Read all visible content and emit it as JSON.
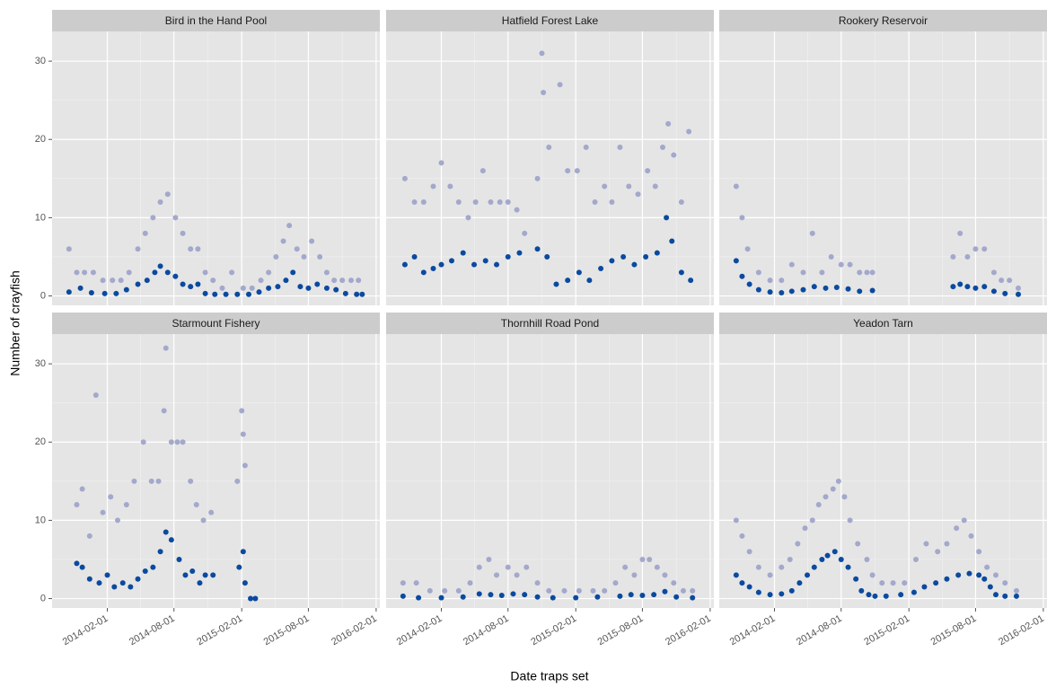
{
  "axis_labels": {
    "x": "Date traps set",
    "y": "Number of crayfish"
  },
  "chart_data": [
    {
      "type": "scatter",
      "title": "Bird in the Hand Pool",
      "grid": true,
      "xlim": [
        "2013-09-04",
        "2016-02-11"
      ],
      "ylim": [
        -1.2,
        33.8
      ],
      "xticks": [
        "2014-02-01",
        "2014-08-01",
        "2015-02-01",
        "2015-08-01",
        "2016-02-01"
      ],
      "yticks": [
        0,
        10,
        20,
        30
      ],
      "series": [
        {
          "color": "#a3a8cc",
          "x": [
            "2013-10-20",
            "2013-11-10",
            "2013-12-01",
            "2013-12-25",
            "2014-01-20",
            "2014-02-15",
            "2014-03-10",
            "2014-04-01",
            "2014-04-25",
            "2014-05-15",
            "2014-06-05",
            "2014-06-25",
            "2014-07-15",
            "2014-08-05",
            "2014-08-25",
            "2014-09-15",
            "2014-10-05",
            "2014-10-25",
            "2014-11-15",
            "2014-12-10",
            "2015-01-05",
            "2015-02-05",
            "2015-03-01",
            "2015-03-25",
            "2015-04-15",
            "2015-05-05",
            "2015-05-25",
            "2015-06-10",
            "2015-07-01",
            "2015-07-20",
            "2015-08-10",
            "2015-09-01",
            "2015-09-20",
            "2015-10-10",
            "2015-11-01",
            "2015-11-25",
            "2015-12-15"
          ],
          "values": [
            6,
            3,
            3,
            3,
            2,
            2,
            2,
            3,
            6,
            8,
            10,
            12,
            13,
            10,
            8,
            6,
            6,
            3,
            2,
            1,
            3,
            1,
            1,
            2,
            3,
            5,
            7,
            9,
            6,
            5,
            7,
            5,
            3,
            2,
            2,
            2,
            2
          ]
        },
        {
          "color": "#0a4a9f",
          "x": [
            "2013-10-20",
            "2013-11-20",
            "2013-12-20",
            "2014-01-25",
            "2014-02-25",
            "2014-03-25",
            "2014-04-25",
            "2014-05-20",
            "2014-06-10",
            "2014-06-25",
            "2014-07-15",
            "2014-08-05",
            "2014-08-25",
            "2014-09-15",
            "2014-10-05",
            "2014-10-25",
            "2014-11-20",
            "2014-12-20",
            "2015-01-20",
            "2015-02-20",
            "2015-03-20",
            "2015-04-15",
            "2015-05-10",
            "2015-06-01",
            "2015-06-20",
            "2015-07-10",
            "2015-08-01",
            "2015-08-25",
            "2015-09-20",
            "2015-10-15",
            "2015-11-10",
            "2015-12-10",
            "2015-12-25"
          ],
          "values": [
            0.5,
            1,
            0.4,
            0.3,
            0.3,
            0.8,
            1.5,
            2,
            3,
            3.8,
            3,
            2.5,
            1.5,
            1.2,
            1.5,
            0.3,
            0.2,
            0.2,
            0.2,
            0.2,
            0.5,
            1,
            1.2,
            2,
            3,
            1.2,
            1,
            1.5,
            1,
            0.8,
            0.3,
            0.2,
            0.2
          ]
        }
      ]
    },
    {
      "type": "scatter",
      "title": "Hatfield Forest Lake",
      "grid": true,
      "xlim": [
        "2013-09-04",
        "2016-02-11"
      ],
      "ylim": [
        -1.2,
        33.8
      ],
      "xticks": [
        "2014-02-01",
        "2014-08-01",
        "2015-02-01",
        "2015-08-01",
        "2016-02-01"
      ],
      "yticks": [
        0,
        10,
        20,
        30
      ],
      "series": [
        {
          "color": "#a3a8cc",
          "x": [
            "2013-10-25",
            "2013-11-20",
            "2013-12-15",
            "2014-01-10",
            "2014-02-01",
            "2014-02-25",
            "2014-03-20",
            "2014-04-15",
            "2014-05-05",
            "2014-05-25",
            "2014-06-15",
            "2014-07-10",
            "2014-08-01",
            "2014-08-25",
            "2014-09-15",
            "2014-10-20",
            "2014-11-01",
            "2014-11-05",
            "2014-11-20",
            "2014-12-20",
            "2015-01-10",
            "2015-02-05",
            "2015-03-01",
            "2015-03-25",
            "2015-04-20",
            "2015-05-10",
            "2015-06-01",
            "2015-06-25",
            "2015-07-20",
            "2015-08-15",
            "2015-09-05",
            "2015-09-25",
            "2015-10-10",
            "2015-10-25",
            "2015-11-15",
            "2015-12-05"
          ],
          "values": [
            15,
            12,
            12,
            14,
            17,
            14,
            12,
            10,
            12,
            16,
            12,
            12,
            12,
            11,
            8,
            15,
            31,
            26,
            19,
            27,
            16,
            16,
            19,
            12,
            14,
            12,
            19,
            14,
            13,
            16,
            14,
            19,
            22,
            18,
            12,
            21
          ]
        },
        {
          "color": "#0a4a9f",
          "x": [
            "2013-10-25",
            "2013-11-20",
            "2013-12-15",
            "2014-01-10",
            "2014-02-01",
            "2014-03-01",
            "2014-04-01",
            "2014-05-01",
            "2014-06-01",
            "2014-07-01",
            "2014-08-01",
            "2014-09-01",
            "2014-10-20",
            "2014-11-15",
            "2014-12-10",
            "2015-01-10",
            "2015-02-10",
            "2015-03-10",
            "2015-04-10",
            "2015-05-10",
            "2015-06-10",
            "2015-07-10",
            "2015-08-10",
            "2015-09-10",
            "2015-10-05",
            "2015-10-20",
            "2015-11-15",
            "2015-12-10"
          ],
          "values": [
            4,
            5,
            3,
            3.5,
            4,
            4.5,
            5.5,
            4,
            4.5,
            4,
            5,
            5.5,
            6,
            5,
            1.5,
            2,
            3,
            2,
            3.5,
            4.5,
            5,
            4,
            5,
            5.5,
            10,
            7,
            3,
            2
          ]
        }
      ]
    },
    {
      "type": "scatter",
      "title": "Rookery Reservoir",
      "grid": true,
      "xlim": [
        "2013-09-04",
        "2016-02-11"
      ],
      "ylim": [
        -1.2,
        33.8
      ],
      "xticks": [
        "2014-02-01",
        "2014-08-01",
        "2015-02-01",
        "2015-08-01",
        "2016-02-01"
      ],
      "yticks": [
        0,
        10,
        20,
        30
      ],
      "series": [
        {
          "color": "#a3a8cc",
          "x": [
            "2013-10-20",
            "2013-11-05",
            "2013-11-20",
            "2013-12-20",
            "2014-01-20",
            "2014-02-20",
            "2014-03-20",
            "2014-04-20",
            "2014-05-15",
            "2014-06-10",
            "2014-07-05",
            "2014-08-01",
            "2014-08-25",
            "2014-09-20",
            "2014-10-10",
            "2014-10-25",
            "2015-06-01",
            "2015-06-20",
            "2015-07-10",
            "2015-08-01",
            "2015-08-25",
            "2015-09-20",
            "2015-10-10",
            "2015-11-01",
            "2015-11-25"
          ],
          "values": [
            14,
            10,
            6,
            3,
            2,
            2,
            4,
            3,
            8,
            3,
            5,
            4,
            4,
            3,
            3,
            3,
            5,
            8,
            5,
            6,
            6,
            3,
            2,
            2,
            1
          ]
        },
        {
          "color": "#0a4a9f",
          "x": [
            "2013-10-20",
            "2013-11-05",
            "2013-11-25",
            "2013-12-20",
            "2014-01-20",
            "2014-02-20",
            "2014-03-20",
            "2014-04-20",
            "2014-05-20",
            "2014-06-20",
            "2014-07-20",
            "2014-08-20",
            "2014-09-20",
            "2014-10-25",
            "2015-06-01",
            "2015-06-20",
            "2015-07-10",
            "2015-08-01",
            "2015-08-25",
            "2015-09-20",
            "2015-10-20",
            "2015-11-25"
          ],
          "values": [
            4.5,
            2.5,
            1.5,
            0.8,
            0.5,
            0.4,
            0.6,
            0.8,
            1.2,
            1,
            1.1,
            0.9,
            0.6,
            0.7,
            1.2,
            1.5,
            1.2,
            1,
            1.2,
            0.6,
            0.3,
            0.2
          ]
        }
      ]
    },
    {
      "type": "scatter",
      "title": "Starmount Fishery",
      "grid": true,
      "xlim": [
        "2013-09-04",
        "2016-02-11"
      ],
      "ylim": [
        -1.2,
        33.8
      ],
      "xticks": [
        "2014-02-01",
        "2014-08-01",
        "2015-02-01",
        "2015-08-01",
        "2016-02-01"
      ],
      "yticks": [
        0,
        10,
        20,
        30
      ],
      "series": [
        {
          "color": "#a3a8cc",
          "x": [
            "2013-11-10",
            "2013-11-25",
            "2013-12-15",
            "2014-01-01",
            "2014-01-20",
            "2014-02-10",
            "2014-03-01",
            "2014-03-25",
            "2014-04-15",
            "2014-05-10",
            "2014-06-01",
            "2014-06-20",
            "2014-07-05",
            "2014-07-10",
            "2014-07-25",
            "2014-08-10",
            "2014-08-25",
            "2014-09-15",
            "2014-10-01",
            "2014-10-20",
            "2014-11-10",
            "2015-01-20",
            "2015-02-01",
            "2015-02-05",
            "2015-02-10",
            "2015-02-25",
            "2015-03-10"
          ],
          "values": [
            12,
            14,
            8,
            26,
            11,
            13,
            10,
            12,
            15,
            20,
            15,
            15,
            24,
            32,
            20,
            20,
            20,
            15,
            12,
            10,
            11,
            15,
            24,
            21,
            17,
            0,
            0
          ]
        },
        {
          "color": "#0a4a9f",
          "x": [
            "2013-11-10",
            "2013-11-25",
            "2013-12-15",
            "2014-01-10",
            "2014-02-01",
            "2014-02-20",
            "2014-03-15",
            "2014-04-05",
            "2014-04-25",
            "2014-05-15",
            "2014-06-05",
            "2014-06-25",
            "2014-07-10",
            "2014-07-25",
            "2014-08-15",
            "2014-09-01",
            "2014-09-20",
            "2014-10-10",
            "2014-10-25",
            "2014-11-15",
            "2015-01-25",
            "2015-02-05",
            "2015-02-10",
            "2015-02-25",
            "2015-03-10"
          ],
          "values": [
            4.5,
            4,
            2.5,
            2,
            3,
            1.5,
            2,
            1.5,
            2.5,
            3.5,
            4,
            6,
            8.5,
            7.5,
            5,
            3,
            3.5,
            2,
            3,
            3,
            4,
            6,
            2,
            0,
            0
          ]
        }
      ]
    },
    {
      "type": "scatter",
      "title": "Thornhill Road Pond",
      "grid": true,
      "xlim": [
        "2013-09-04",
        "2016-02-11"
      ],
      "ylim": [
        -1.2,
        33.8
      ],
      "xticks": [
        "2014-02-01",
        "2014-08-01",
        "2015-02-01",
        "2015-08-01",
        "2016-02-01"
      ],
      "yticks": [
        0,
        10,
        20,
        30
      ],
      "series": [
        {
          "color": "#a3a8cc",
          "x": [
            "2013-10-20",
            "2013-11-25",
            "2014-01-01",
            "2014-02-10",
            "2014-03-20",
            "2014-04-20",
            "2014-05-15",
            "2014-06-10",
            "2014-07-01",
            "2014-08-01",
            "2014-08-25",
            "2014-09-20",
            "2014-10-20",
            "2014-11-20",
            "2015-01-01",
            "2015-02-10",
            "2015-03-20",
            "2015-04-20",
            "2015-05-20",
            "2015-06-15",
            "2015-07-10",
            "2015-08-01",
            "2015-08-20",
            "2015-09-10",
            "2015-10-01",
            "2015-10-25",
            "2015-11-20",
            "2015-12-15"
          ],
          "values": [
            2,
            2,
            1,
            1,
            1,
            2,
            4,
            5,
            3,
            4,
            3,
            4,
            2,
            1,
            1,
            1,
            1,
            1,
            2,
            4,
            3,
            5,
            5,
            4,
            3,
            2,
            1,
            1
          ]
        },
        {
          "color": "#0a4a9f",
          "x": [
            "2013-10-20",
            "2013-12-01",
            "2014-02-01",
            "2014-04-01",
            "2014-05-15",
            "2014-06-15",
            "2014-07-15",
            "2014-08-15",
            "2014-09-15",
            "2014-10-20",
            "2014-12-01",
            "2015-02-01",
            "2015-04-01",
            "2015-06-01",
            "2015-07-01",
            "2015-08-01",
            "2015-09-01",
            "2015-10-01",
            "2015-11-01",
            "2015-12-15"
          ],
          "values": [
            0.3,
            0.1,
            0.1,
            0.2,
            0.6,
            0.5,
            0.4,
            0.6,
            0.5,
            0.2,
            0.1,
            0.1,
            0.2,
            0.3,
            0.5,
            0.4,
            0.5,
            0.9,
            0.2,
            0.1
          ]
        }
      ]
    },
    {
      "type": "scatter",
      "title": "Yeadon Tarn",
      "grid": true,
      "xlim": [
        "2013-09-04",
        "2016-02-11"
      ],
      "ylim": [
        -1.2,
        33.8
      ],
      "xticks": [
        "2014-02-01",
        "2014-08-01",
        "2015-02-01",
        "2015-08-01",
        "2016-02-01"
      ],
      "yticks": [
        0,
        10,
        20,
        30
      ],
      "series": [
        {
          "color": "#a3a8cc",
          "x": [
            "2013-10-20",
            "2013-11-05",
            "2013-11-25",
            "2013-12-20",
            "2014-01-20",
            "2014-02-20",
            "2014-03-15",
            "2014-04-05",
            "2014-04-25",
            "2014-05-15",
            "2014-06-01",
            "2014-06-20",
            "2014-07-10",
            "2014-07-25",
            "2014-08-10",
            "2014-08-25",
            "2014-09-15",
            "2014-10-10",
            "2014-10-25",
            "2014-11-20",
            "2014-12-20",
            "2015-01-20",
            "2015-02-20",
            "2015-03-20",
            "2015-04-20",
            "2015-05-15",
            "2015-06-10",
            "2015-07-01",
            "2015-07-20",
            "2015-08-10",
            "2015-09-01",
            "2015-09-25",
            "2015-10-20",
            "2015-11-20"
          ],
          "values": [
            10,
            8,
            6,
            4,
            3,
            4,
            5,
            7,
            9,
            10,
            12,
            13,
            14,
            15,
            13,
            10,
            7,
            5,
            3,
            2,
            2,
            2,
            5,
            7,
            6,
            7,
            9,
            10,
            8,
            6,
            4,
            3,
            2,
            1
          ]
        },
        {
          "color": "#0a4a9f",
          "x": [
            "2013-10-20",
            "2013-11-05",
            "2013-11-25",
            "2013-12-20",
            "2014-01-20",
            "2014-02-20",
            "2014-03-20",
            "2014-04-10",
            "2014-05-01",
            "2014-05-20",
            "2014-06-10",
            "2014-06-25",
            "2014-07-15",
            "2014-08-01",
            "2014-08-20",
            "2014-09-10",
            "2014-09-25",
            "2014-10-15",
            "2014-11-01",
            "2014-12-01",
            "2015-01-10",
            "2015-02-15",
            "2015-03-15",
            "2015-04-15",
            "2015-05-15",
            "2015-06-15",
            "2015-07-15",
            "2015-08-10",
            "2015-08-25",
            "2015-09-10",
            "2015-09-25",
            "2015-10-20",
            "2015-11-20"
          ],
          "values": [
            3,
            2,
            1.5,
            0.8,
            0.5,
            0.6,
            1,
            2,
            3,
            4,
            5,
            5.5,
            6,
            5,
            4,
            2.5,
            1,
            0.5,
            0.3,
            0.3,
            0.5,
            0.8,
            1.5,
            2,
            2.5,
            3,
            3.2,
            3,
            2.5,
            1.5,
            0.5,
            0.3,
            0.3
          ]
        }
      ]
    }
  ]
}
